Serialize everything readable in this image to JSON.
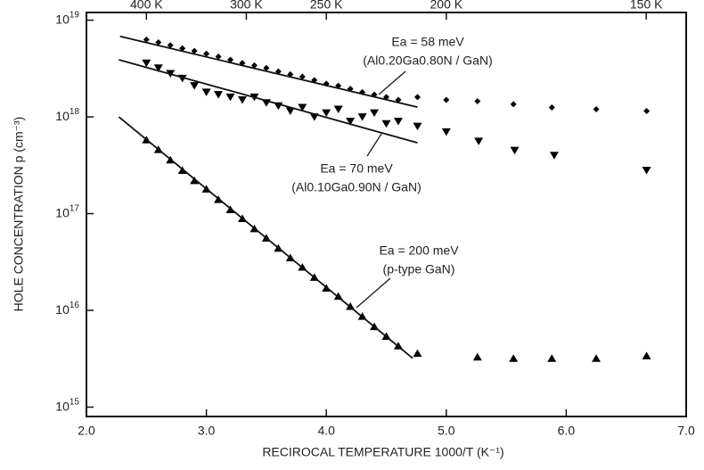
{
  "chart_data": {
    "type": "scatter",
    "xlabel": "RECIROCAL TEMPERATURE  1000/T  (K⁻¹)",
    "ylabel": "HOLE CONCENTRATION  p  (cm⁻³)",
    "xlim": [
      2,
      7
    ],
    "ylim": [
      800000000000000.0,
      1.2e+19
    ],
    "log_y": true,
    "xticks": [
      {
        "value": 2,
        "label": "2.0"
      },
      {
        "value": 3,
        "label": "3.0"
      },
      {
        "value": 4,
        "label": "4.0"
      },
      {
        "value": 5,
        "label": "5.0"
      },
      {
        "value": 6,
        "label": "6.0"
      },
      {
        "value": 7,
        "label": "7.0"
      }
    ],
    "yticks": [
      {
        "value": 1000000000000000.0,
        "label": "10^15"
      },
      {
        "value": 1e+16,
        "label": "10^16"
      },
      {
        "value": 1e+17,
        "label": "10^17"
      },
      {
        "value": 1e+18,
        "label": "10^18"
      },
      {
        "value": 1e+19,
        "label": "10^19"
      }
    ],
    "top_ticks": [
      {
        "value": 2.5,
        "label": "400 K"
      },
      {
        "value": 3.333,
        "label": "300 K"
      },
      {
        "value": 4,
        "label": "250 K"
      },
      {
        "value": 5,
        "label": "200 K"
      },
      {
        "value": 6.667,
        "label": "150 K"
      }
    ],
    "series": [
      {
        "marker": "diamond",
        "color": "#000000",
        "x": [
          2.5,
          2.6,
          2.7,
          2.8,
          2.9,
          3.0,
          3.1,
          3.2,
          3.3,
          3.4,
          3.5,
          3.6,
          3.7,
          3.8,
          3.9,
          4.0,
          4.1,
          4.2,
          4.3,
          4.4,
          4.5,
          4.6,
          4.76,
          5.0,
          5.26,
          5.56,
          5.88,
          6.25,
          6.67
        ],
        "values": [
          6.3e+18,
          5.9e+18,
          5.5e+18,
          5.1e+18,
          4.8e+18,
          4.5e+18,
          4.2e+18,
          3.9e+18,
          3.6e+18,
          3.4e+18,
          3.2e+18,
          2.95e+18,
          2.75e+18,
          2.6e+18,
          2.4e+18,
          2.2e+18,
          2.1e+18,
          1.95e+18,
          1.8e+18,
          1.7e+18,
          1.6e+18,
          1.5e+18,
          1.6e+18,
          1.5e+18,
          1.45e+18,
          1.35e+18,
          1.25e+18,
          1.2e+18,
          1.15e+18
        ]
      },
      {
        "marker": "triangle-down",
        "color": "#000000",
        "x": [
          2.5,
          2.6,
          2.7,
          2.8,
          2.9,
          3.0,
          3.1,
          3.2,
          3.3,
          3.4,
          3.5,
          3.6,
          3.7,
          3.8,
          3.9,
          4.0,
          4.1,
          4.2,
          4.3,
          4.4,
          4.5,
          4.6,
          4.76,
          5.0,
          5.27,
          5.57,
          5.9,
          6.67
        ],
        "values": [
          3.6e+18,
          3.2e+18,
          2.8e+18,
          2.5e+18,
          2.1e+18,
          1.8e+18,
          1.7e+18,
          1.6e+18,
          1.5e+18,
          1.6e+18,
          1.4e+18,
          1.3e+18,
          1.15e+18,
          1.25e+18,
          1e+18,
          1.1e+18,
          1.2e+18,
          9e+17,
          1e+18,
          1.1e+18,
          8.5e+17,
          9e+17,
          8e+17,
          7e+17,
          5.6e+17,
          4.5e+17,
          4e+17,
          2.8e+17
        ]
      },
      {
        "marker": "triangle-up",
        "color": "#000000",
        "x": [
          2.5,
          2.6,
          2.7,
          2.8,
          2.9,
          3.0,
          3.1,
          3.2,
          3.3,
          3.4,
          3.5,
          3.6,
          3.7,
          3.8,
          3.9,
          4.0,
          4.1,
          4.2,
          4.3,
          4.4,
          4.5,
          4.6,
          4.76,
          5.26,
          5.56,
          5.88,
          6.25,
          6.67
        ],
        "values": [
          5.8e+17,
          4.6e+17,
          3.6e+17,
          2.8e+17,
          2.2e+17,
          1.8e+17,
          1.4e+17,
          1.1e+17,
          8.9e+16,
          7e+16,
          5.6e+16,
          4.4e+16,
          3.5e+16,
          2.8e+16,
          2.2e+16,
          1.7e+16,
          1.4e+16,
          1.1e+16,
          8700000000000000.0,
          6800000000000000.0,
          5400000000000000.0,
          4300000000000000.0,
          3600000000000000.0,
          3300000000000000.0,
          3200000000000000.0,
          3200000000000000.0,
          3200000000000000.0,
          3400000000000000.0
        ]
      }
    ],
    "fits": [
      {
        "x": [
          2.28,
          4.76
        ],
        "values": [
          6.8e+18,
          1.26e+18
        ]
      },
      {
        "x": [
          2.27,
          4.76
        ],
        "values": [
          3.9e+18,
          5.4e+17
        ]
      },
      {
        "x": [
          2.27,
          4.72
        ],
        "values": [
          1e+18,
          3200000000000000.0
        ]
      }
    ],
    "annotations": [
      {
        "lines": [
          "Ea = 58 meV",
          "(Al0.20Ga0.80N / GaN)"
        ]
      },
      {
        "lines": [
          "Ea = 70 meV",
          "(Al0.10Ga0.90N / GaN)"
        ]
      },
      {
        "lines": [
          "Ea = 200 meV",
          "(p-type GaN)"
        ]
      }
    ]
  }
}
